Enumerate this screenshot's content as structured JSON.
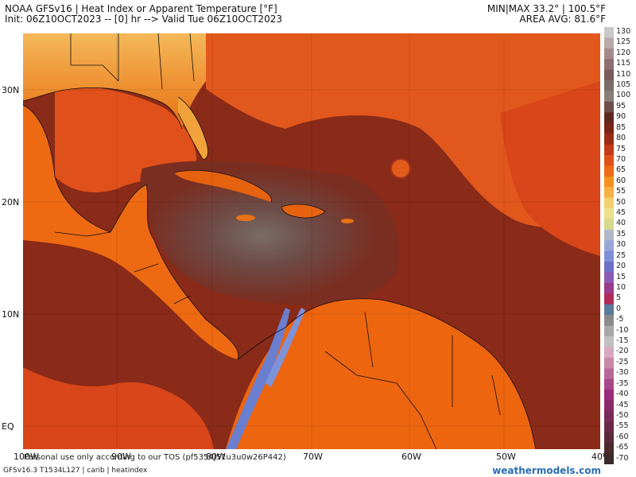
{
  "header": {
    "title": "NOAA GFSv16 | Heat Index or Apparent Temperature [°F]",
    "subtitle": "Init: 06Z10OCT2023 -- [0] hr --> Valid Tue 06Z10OCT2023",
    "minmax": "MIN|MAX 33.2° | 100.5°F",
    "area_avg": "AREA AVG: 81.6°F"
  },
  "map": {
    "lat_labels": [
      "30N",
      "20N",
      "10N",
      "EQ"
    ],
    "lon_labels": [
      "100W",
      "90W",
      "80W",
      "70W",
      "60W",
      "50W",
      "40W"
    ]
  },
  "colorbar": {
    "labels": [
      "130",
      "125",
      "120",
      "115",
      "110",
      "105",
      "100",
      "95",
      "90",
      "85",
      "80",
      "75",
      "70",
      "65",
      "60",
      "55",
      "50",
      "45",
      "40",
      "35",
      "30",
      "25",
      "20",
      "15",
      "10",
      "5",
      "0",
      "-5",
      "-10",
      "-15",
      "-20",
      "-25",
      "-30",
      "-35",
      "-40",
      "-45",
      "-50",
      "-55",
      "-60",
      "-65",
      "-70"
    ]
  },
  "footer": {
    "disclaimer": "Personal use only according to our TOS (pf5354J51u3u0w26P442)",
    "model_info": "GFSv16.3 T1534L127 | carib | heatindex",
    "brand": "weathermodels.com"
  }
}
